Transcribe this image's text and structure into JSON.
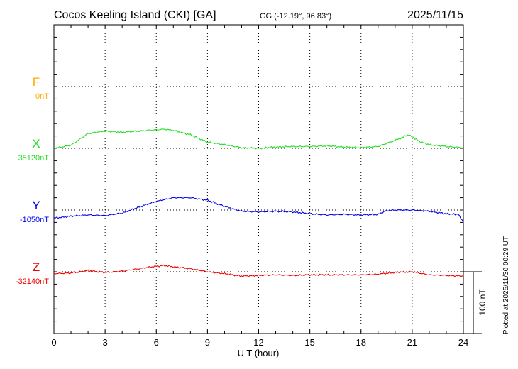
{
  "header": {
    "station": "Cocos Keeling Island (CKI)  [GA]",
    "coords": "GG (-12.19°,  96.83°)",
    "date": "2025/11/15"
  },
  "footer": {
    "plotted": "Plotted at 2025/11/30 00:29 UT",
    "scale_label": "100 nT"
  },
  "chart_data": {
    "type": "line",
    "title": "Cocos Keeling Island (CKI)  [GA]",
    "xlabel": "U T (hour)",
    "xlim": [
      0,
      24
    ],
    "xticks": [
      "0",
      "3",
      "6",
      "9",
      "12",
      "15",
      "18",
      "21",
      "24"
    ],
    "scale_nT": 100,
    "grid": true,
    "series": [
      {
        "name": "F",
        "baseline_label": "0nT",
        "color": "#ffaa00",
        "x": [],
        "values": []
      },
      {
        "name": "X",
        "baseline_label": "35120nT",
        "color": "#22dd22",
        "x": [
          0,
          1,
          2,
          3,
          4,
          5,
          6,
          6.5,
          7,
          8,
          9,
          10,
          11,
          12,
          13,
          14,
          15,
          16,
          17,
          18,
          19,
          20,
          20.8,
          21.5,
          22,
          23,
          24
        ],
        "values": [
          0,
          5,
          24,
          28,
          26,
          28,
          30,
          31,
          29,
          22,
          10,
          6,
          1,
          0,
          2,
          3,
          3,
          4,
          2,
          1,
          3,
          13,
          22,
          10,
          6,
          3,
          1
        ]
      },
      {
        "name": "Y",
        "baseline_label": "-1050nT",
        "color": "#0000ee",
        "x": [
          0,
          1,
          2,
          3,
          4,
          5,
          6,
          7,
          8,
          9,
          10,
          11,
          12,
          13,
          14,
          15,
          16,
          17,
          18,
          19,
          19.5,
          20,
          21,
          22,
          23,
          23.7,
          24
        ],
        "values": [
          -13,
          -10,
          -8,
          -9,
          -5,
          5,
          14,
          20,
          20,
          16,
          6,
          -2,
          -3,
          -2,
          -3,
          -6,
          -8,
          -7,
          -8,
          -7,
          -1,
          0,
          0,
          -2,
          -6,
          -7,
          -20
        ]
      },
      {
        "name": "Z",
        "baseline_label": "-32140nT",
        "color": "#ee0000",
        "x": [
          0,
          1,
          2,
          3,
          4,
          5,
          6,
          6.5,
          7,
          8,
          9,
          10,
          11,
          12,
          13,
          14,
          15,
          16,
          17,
          18,
          19,
          20,
          21,
          22,
          23,
          24
        ],
        "values": [
          -3,
          -2,
          2,
          -1,
          1,
          5,
          9,
          10,
          8,
          5,
          0,
          -3,
          -7,
          -6,
          -5,
          -6,
          -5,
          -5,
          -5,
          -5,
          -4,
          -1,
          0,
          -5,
          -6,
          -7
        ]
      }
    ]
  }
}
